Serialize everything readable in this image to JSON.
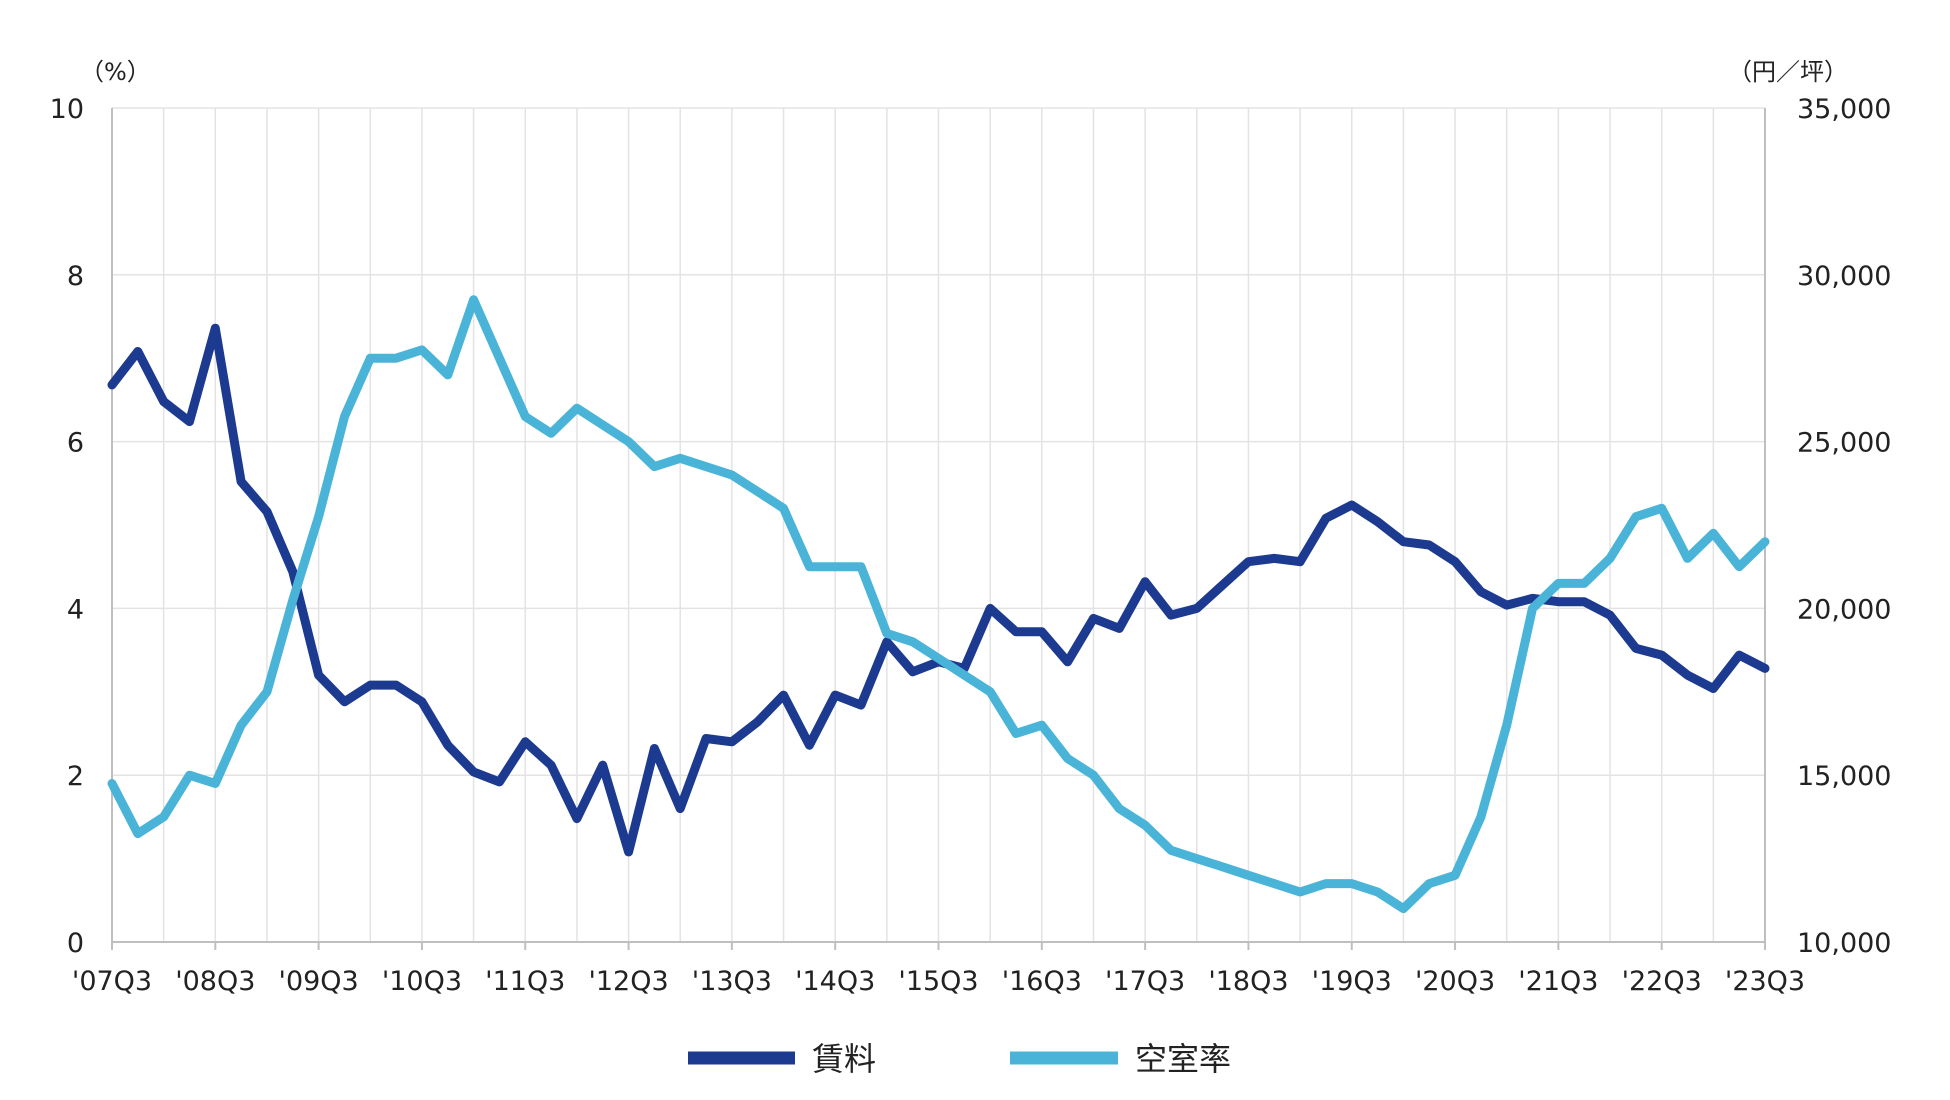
{
  "chart_data": {
    "type": "line",
    "title": "",
    "x": [
      "'07Q3",
      "'07Q4",
      "'08Q1",
      "'08Q2",
      "'08Q3",
      "'08Q4",
      "'09Q1",
      "'09Q2",
      "'09Q3",
      "'09Q4",
      "'10Q1",
      "'10Q2",
      "'10Q3",
      "'10Q4",
      "'11Q1",
      "'11Q2",
      "'11Q3",
      "'11Q4",
      "'12Q1",
      "'12Q2",
      "'12Q3",
      "'12Q4",
      "'13Q1",
      "'13Q2",
      "'13Q3",
      "'13Q4",
      "'14Q1",
      "'14Q2",
      "'14Q3",
      "'14Q4",
      "'15Q1",
      "'15Q2",
      "'15Q3",
      "'15Q4",
      "'16Q1",
      "'16Q2",
      "'16Q3",
      "'16Q4",
      "'17Q1",
      "'17Q2",
      "'17Q3",
      "'17Q4",
      "'18Q1",
      "'18Q2",
      "'18Q3",
      "'18Q4",
      "'19Q1",
      "'19Q2",
      "'19Q3",
      "'19Q4",
      "'20Q1",
      "'20Q2",
      "'20Q3",
      "'20Q4",
      "'21Q1",
      "'21Q2",
      "'21Q3",
      "'21Q4",
      "'22Q1",
      "'22Q2",
      "'22Q3",
      "'22Q4",
      "'23Q1",
      "'23Q2",
      "'23Q3"
    ],
    "x_tick_labels": [
      "'07Q3",
      "'08Q3",
      "'09Q3",
      "'10Q3",
      "'11Q3",
      "'12Q3",
      "'13Q3",
      "'14Q3",
      "'15Q3",
      "'16Q3",
      "'17Q3",
      "'18Q3",
      "'19Q3",
      "'20Q3",
      "'21Q3",
      "'22Q3",
      "'23Q3"
    ],
    "y_left": {
      "unit_label": "（%）",
      "ylim": [
        0,
        10
      ],
      "ticks": [
        "0",
        "2",
        "4",
        "6",
        "8",
        "10"
      ]
    },
    "y_right": {
      "unit_label": "（円／坪）",
      "ylim": [
        10000,
        35000
      ],
      "ticks": [
        "10,000",
        "15,000",
        "20,000",
        "25,000",
        "30,000",
        "35,000"
      ]
    },
    "grid": true,
    "legend_position": "bottom-center",
    "series": [
      {
        "name": "賃料",
        "axis": "right",
        "color": "#1c3a8f",
        "values": [
          26700,
          27700,
          26200,
          25600,
          28400,
          23800,
          22900,
          21100,
          18000,
          17200,
          17700,
          17700,
          17200,
          15900,
          15100,
          14800,
          16000,
          15300,
          13700,
          15300,
          12700,
          15800,
          14000,
          16100,
          16000,
          16600,
          17400,
          15900,
          17400,
          17100,
          19000,
          18100,
          18400,
          18200,
          20000,
          19300,
          19300,
          18400,
          19700,
          19400,
          20800,
          19800,
          20000,
          20700,
          21400,
          21500,
          21400,
          22700,
          23100,
          22600,
          22000,
          21900,
          21400,
          20500,
          20100,
          20300,
          20200,
          20200,
          19800,
          18800,
          18600,
          18000,
          17600,
          18600,
          18200
        ]
      },
      {
        "name": "空室率",
        "axis": "left",
        "color": "#4ab4d8",
        "values": [
          1.9,
          1.3,
          1.5,
          2.0,
          1.9,
          2.6,
          3.0,
          4.1,
          5.1,
          6.3,
          7.0,
          7.0,
          7.1,
          6.8,
          7.7,
          7.0,
          6.3,
          6.1,
          6.4,
          6.2,
          6.0,
          5.7,
          5.8,
          5.7,
          5.6,
          5.4,
          5.2,
          4.5,
          4.5,
          4.5,
          3.7,
          3.6,
          3.4,
          3.2,
          3.0,
          2.5,
          2.6,
          2.2,
          2.0,
          1.6,
          1.4,
          1.1,
          1.0,
          0.9,
          0.8,
          0.7,
          0.6,
          0.7,
          0.7,
          0.6,
          0.4,
          0.7,
          0.8,
          1.5,
          2.6,
          4.0,
          4.3,
          4.3,
          4.6,
          5.1,
          5.2,
          4.6,
          4.9,
          4.5,
          4.8
        ]
      }
    ]
  }
}
